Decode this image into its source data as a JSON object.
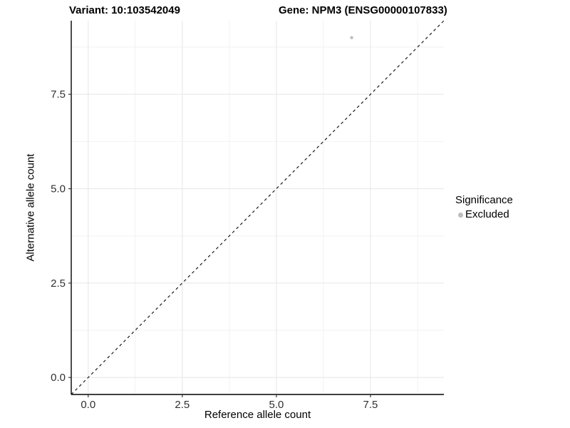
{
  "chart_data": {
    "type": "scatter",
    "title_left": "Variant: 10:103542049",
    "title_right": "Gene: NPM3 (ENSG00000107833)",
    "xlabel": "Reference allele count",
    "ylabel": "Alternative allele count",
    "xlim": [
      -0.45,
      9.45
    ],
    "ylim": [
      -0.45,
      9.45
    ],
    "x_ticks": {
      "values": [
        0,
        2.5,
        5,
        7.5
      ],
      "labels": [
        "0.0",
        "2.5",
        "5.0",
        "7.5"
      ]
    },
    "y_ticks": {
      "values": [
        0,
        2.5,
        5,
        7.5
      ],
      "labels": [
        "0.0",
        "2.5",
        "5.0",
        "7.5"
      ]
    },
    "x_minor_ticks": [
      1.25,
      3.75,
      6.25,
      8.75
    ],
    "y_minor_ticks": [
      1.25,
      3.75,
      6.25,
      8.75
    ],
    "grid": true,
    "legend_position": "right",
    "reference_line": {
      "type": "identity y=x",
      "style": "dashed",
      "color": "#1a1a1a"
    },
    "series": [
      {
        "name": "Excluded",
        "color": "#bdbdbd",
        "points": [
          [
            7,
            9
          ]
        ]
      }
    ],
    "legend": {
      "title": "Significance",
      "items": [
        {
          "label": "Excluded",
          "color": "#bdbdbd"
        }
      ]
    }
  },
  "colors": {
    "background": "#ffffff",
    "grid_major": "#e8e8e8",
    "grid_minor": "#f2f2f2",
    "axis_line": "#000000",
    "tick_mark": "#333333",
    "tick_label": "#303030",
    "point_excluded": "#bdbdbd"
  }
}
